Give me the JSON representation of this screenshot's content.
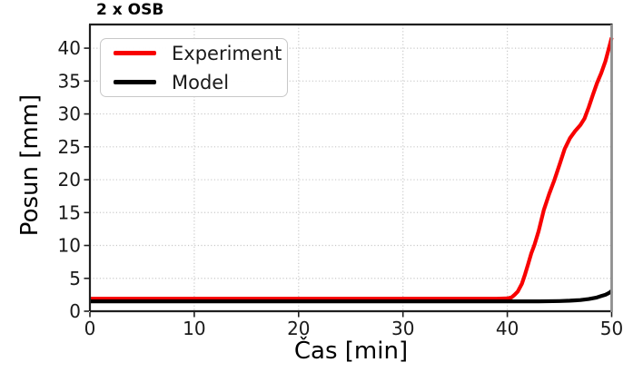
{
  "title": "2 x OSB",
  "axis": {
    "xlabel": "Čas [min]",
    "ylabel": "Posun [mm]"
  },
  "colors": {
    "experiment": "#f80000",
    "model": "#000000",
    "grid": "#c9c9c9",
    "spine": "#1f1f1f",
    "spine_right": "#8f8f8f",
    "background": "#ffffff"
  },
  "legend": {
    "position": "upper-left",
    "items": [
      {
        "label": "Experiment",
        "color": "#f80000"
      },
      {
        "label": "Model",
        "color": "#000000"
      }
    ]
  },
  "chart_data": {
    "type": "line",
    "title": "2 x OSB",
    "xlabel": "Čas [min]",
    "ylabel": "Posun [mm]",
    "xlim": [
      0,
      50
    ],
    "ylim": [
      0,
      43.6
    ],
    "xticks": [
      0,
      10,
      20,
      30,
      40,
      50
    ],
    "yticks": [
      0,
      5,
      10,
      15,
      20,
      25,
      30,
      35,
      40
    ],
    "grid": "dotted",
    "legend_position": "upper-left",
    "series": [
      {
        "name": "Experiment",
        "color": "#f80000",
        "linewidth": 4.2,
        "points": [
          [
            0,
            1.9
          ],
          [
            4,
            1.9
          ],
          [
            8,
            1.9
          ],
          [
            12,
            1.9
          ],
          [
            16,
            1.9
          ],
          [
            20,
            1.9
          ],
          [
            24,
            1.9
          ],
          [
            28,
            1.9
          ],
          [
            32,
            1.9
          ],
          [
            36,
            1.9
          ],
          [
            39,
            1.9
          ],
          [
            40,
            1.95
          ],
          [
            40.4,
            2.1
          ],
          [
            40.7,
            2.5
          ],
          [
            41,
            3.0
          ],
          [
            41.4,
            4.2
          ],
          [
            41.7,
            5.6
          ],
          [
            42,
            7.2
          ],
          [
            42.3,
            8.8
          ],
          [
            42.6,
            10.1
          ],
          [
            43,
            12.2
          ],
          [
            43.5,
            15.4
          ],
          [
            44,
            17.8
          ],
          [
            44.5,
            19.9
          ],
          [
            45,
            22.3
          ],
          [
            45.5,
            24.7
          ],
          [
            46,
            26.3
          ],
          [
            46.5,
            27.4
          ],
          [
            47,
            28.3
          ],
          [
            47.4,
            29.3
          ],
          [
            47.8,
            31.0
          ],
          [
            48.2,
            32.9
          ],
          [
            48.6,
            34.7
          ],
          [
            49,
            36.2
          ],
          [
            49.4,
            38.0
          ],
          [
            49.7,
            39.8
          ],
          [
            50,
            41.6
          ]
        ]
      },
      {
        "name": "Model",
        "color": "#000000",
        "linewidth": 4.2,
        "points": [
          [
            0,
            1.5
          ],
          [
            5,
            1.5
          ],
          [
            10,
            1.5
          ],
          [
            15,
            1.5
          ],
          [
            20,
            1.5
          ],
          [
            25,
            1.5
          ],
          [
            30,
            1.5
          ],
          [
            35,
            1.5
          ],
          [
            40,
            1.5
          ],
          [
            43,
            1.5
          ],
          [
            45,
            1.55
          ],
          [
            46,
            1.6
          ],
          [
            47,
            1.7
          ],
          [
            47.8,
            1.85
          ],
          [
            48.5,
            2.05
          ],
          [
            49,
            2.3
          ],
          [
            49.4,
            2.5
          ],
          [
            49.7,
            2.75
          ],
          [
            49.9,
            2.95
          ],
          [
            50,
            3.1
          ]
        ]
      }
    ]
  }
}
